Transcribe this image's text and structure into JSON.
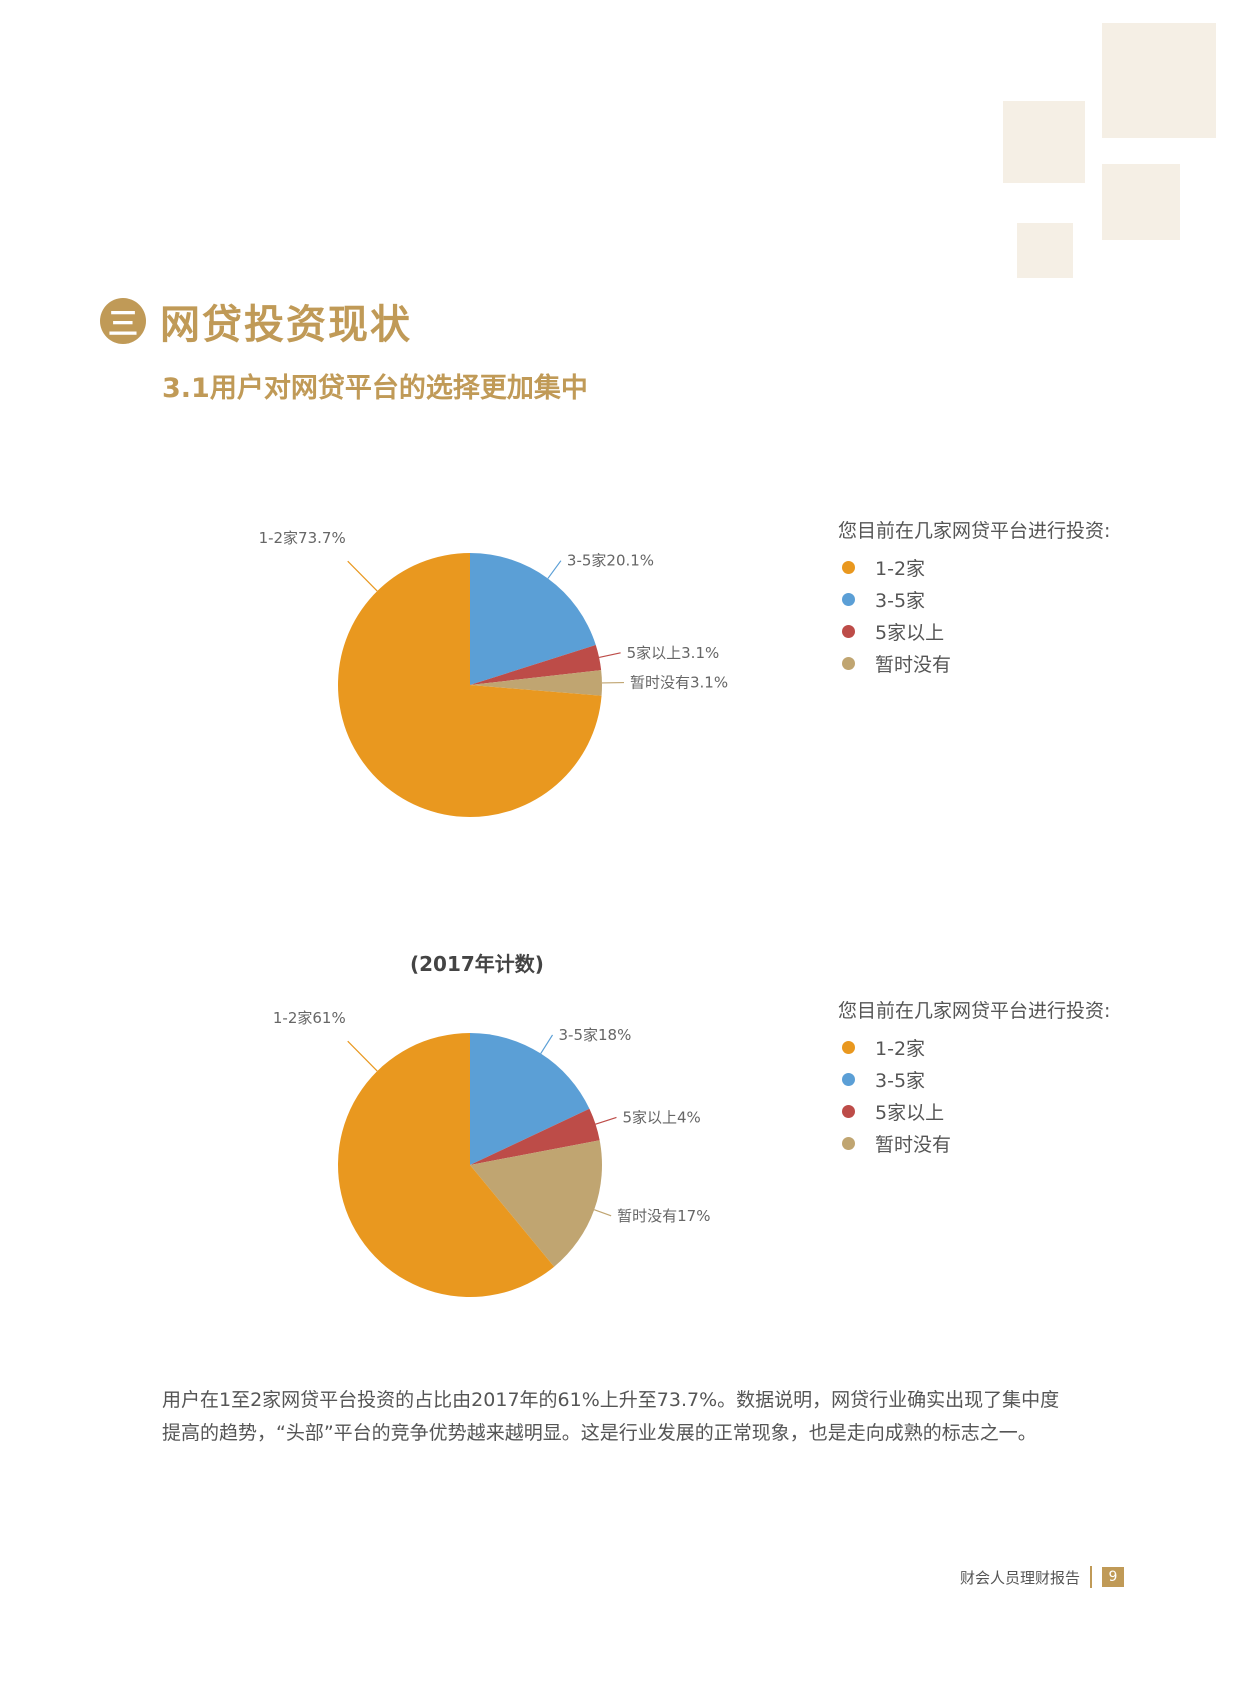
{
  "section": {
    "number": "三",
    "title": "网贷投资现状"
  },
  "subtitle": "3.1用户对网贷平台的选择更加集中",
  "chart_data": [
    {
      "type": "pie",
      "title": "",
      "legend_title": "您目前在几家网贷平台进行投资:",
      "legend_position": "right",
      "categories": [
        "1-2家",
        "3-5家",
        "5家以上",
        "暂时没有"
      ],
      "values": [
        73.7,
        20.1,
        3.1,
        3.1
      ],
      "labels": [
        "1-2家73.7%",
        "3-5家20.1%",
        "5家以上3.1%",
        "暂时没有3.1%"
      ],
      "colors": [
        "#e9981f",
        "#5b9fd6",
        "#bd4c48",
        "#c0a571"
      ]
    },
    {
      "type": "pie",
      "title": "(2017年计数)",
      "legend_title": "您目前在几家网贷平台进行投资:",
      "legend_position": "right",
      "categories": [
        "1-2家",
        "3-5家",
        "5家以上",
        "暂时没有"
      ],
      "values": [
        61,
        18,
        4,
        17
      ],
      "labels": [
        "1-2家61%",
        "3-5家18%",
        "5家以上4%",
        "暂时没有17%"
      ],
      "colors": [
        "#e9981f",
        "#5b9fd6",
        "#bd4c48",
        "#c0a571"
      ]
    }
  ],
  "body_text": [
    "用户在1至2家网贷平台投资的占比由2017年的61%上升至73.7%。数据说明，网贷行业确实出现了集中度",
    "提高的趋势，“头部”平台的竞争优势越来越明显。这是行业发展的正常现象，也是走向成熟的标志之一。"
  ],
  "footer": {
    "text": "财会人员理财报告",
    "page": "9"
  }
}
